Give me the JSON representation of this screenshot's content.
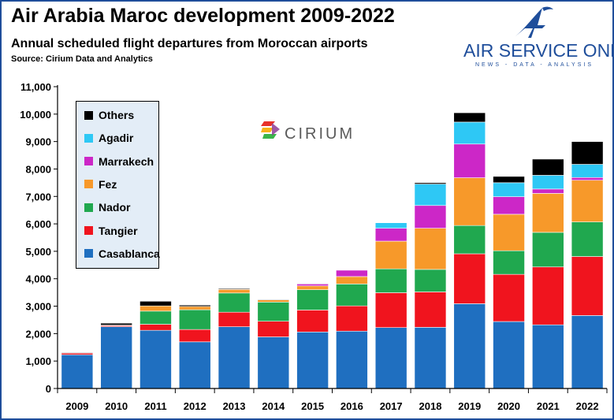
{
  "title": "Air Arabia Maroc development 2009-2022",
  "subtitle": "Annual scheduled flight departures from Moroccan airports",
  "source": "Source: Cirium Data and Analytics",
  "brand": {
    "name": "AIR SERVICE ONE",
    "tagline": "NEWS - DATA - ANALYSIS",
    "icon": "stylized-A-plane-icon",
    "color": "#1f4e9b"
  },
  "watermark": {
    "text": "CIRIUM",
    "icon": "cirium-logo-icon"
  },
  "chart_data": {
    "type": "bar",
    "stacked": true,
    "categories": [
      "2009",
      "2010",
      "2011",
      "2012",
      "2013",
      "2014",
      "2015",
      "2016",
      "2017",
      "2018",
      "2019",
      "2020",
      "2021",
      "2022"
    ],
    "ylim": [
      0,
      11000
    ],
    "yticks": [
      "0",
      "1,000",
      "2,000",
      "3,000",
      "4,000",
      "5,000",
      "6,000",
      "7,000",
      "8,000",
      "9,000",
      "10,000",
      "11,000"
    ],
    "ytick_values": [
      0,
      1000,
      2000,
      3000,
      4000,
      5000,
      6000,
      7000,
      8000,
      9000,
      10000,
      11000
    ],
    "grid": false,
    "legend_position": "top-left",
    "series": [
      {
        "name": "Casablanca",
        "color": "#1f6fc0",
        "values": [
          1230,
          2250,
          2120,
          1700,
          2250,
          1880,
          2060,
          2090,
          2220,
          2230,
          3090,
          2440,
          2320,
          2660
        ]
      },
      {
        "name": "Tangier",
        "color": "#f0141e",
        "values": [
          60,
          40,
          220,
          450,
          530,
          570,
          800,
          920,
          1270,
          1290,
          1820,
          1720,
          2110,
          2150
        ]
      },
      {
        "name": "Nador",
        "color": "#20a84f",
        "values": [
          0,
          20,
          480,
          720,
          700,
          700,
          740,
          800,
          870,
          820,
          1030,
          860,
          1260,
          1260
        ]
      },
      {
        "name": "Fez",
        "color": "#f7992a",
        "values": [
          0,
          0,
          190,
          120,
          130,
          80,
          140,
          270,
          1010,
          1500,
          1740,
          1330,
          1420,
          1520
        ]
      },
      {
        "name": "Marrakech",
        "color": "#cc27c7",
        "values": [
          0,
          0,
          0,
          0,
          0,
          0,
          70,
          230,
          470,
          830,
          1230,
          640,
          160,
          100
        ]
      },
      {
        "name": "Agadir",
        "color": "#2ec8f5",
        "values": [
          0,
          0,
          0,
          0,
          0,
          0,
          0,
          0,
          200,
          780,
          800,
          510,
          500,
          480
        ]
      },
      {
        "name": "Others",
        "color": "#000000",
        "values": [
          20,
          70,
          170,
          50,
          30,
          20,
          20,
          0,
          0,
          50,
          340,
          230,
          590,
          830
        ]
      }
    ],
    "legend_order": [
      "Others",
      "Agadir",
      "Marrakech",
      "Fez",
      "Nador",
      "Tangier",
      "Casablanca"
    ]
  }
}
